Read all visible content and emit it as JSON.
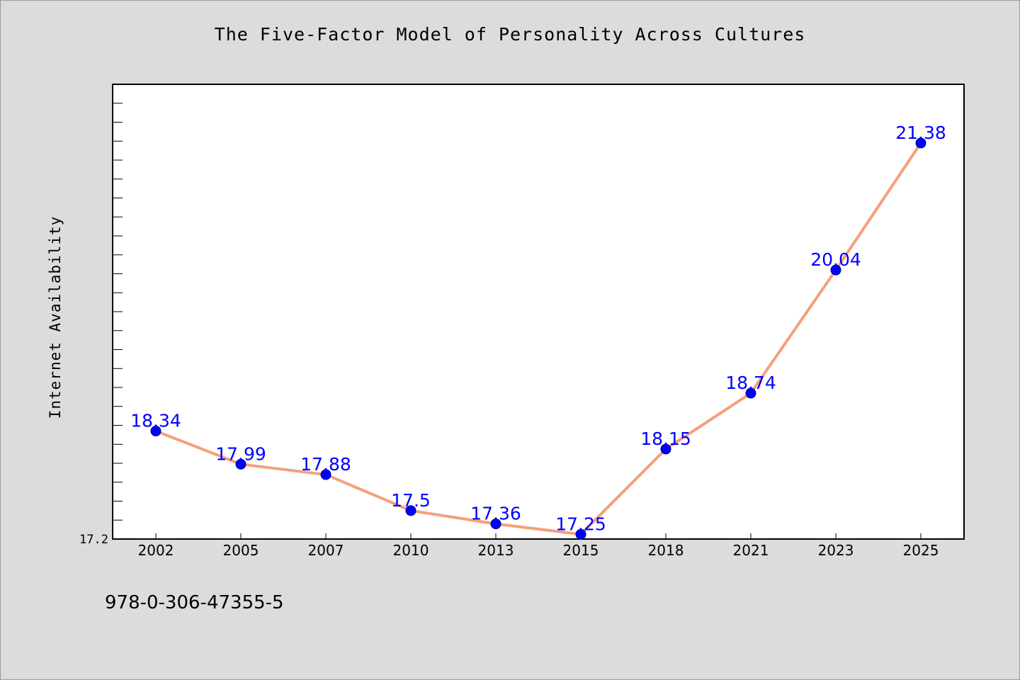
{
  "chart_data": {
    "type": "line",
    "title": "The Five-Factor Model of Personality Across Cultures",
    "xlabel": "",
    "ylabel": "Internet Availability",
    "categories": [
      "2002",
      "2005",
      "2007",
      "2010",
      "2013",
      "2015",
      "2018",
      "2021",
      "2023",
      "2025"
    ],
    "series": [
      {
        "values": [
          18.34,
          17.99,
          17.88,
          17.5,
          17.36,
          17.25,
          18.15,
          18.74,
          20.04,
          21.38
        ],
        "data_labels": [
          "18.34",
          "17.99",
          "17.88",
          "17.5",
          "17.36",
          "17.25",
          "18.15",
          "18.74",
          "20.04",
          "21.38"
        ]
      }
    ],
    "ylim": [
      17.2,
      22.0
    ],
    "y_tick_label": "17.2",
    "grid": false,
    "legend": "none",
    "colors": {
      "line": "#f4a07c",
      "marker": "#0000ff",
      "data_label": "#0000ff",
      "background": "#dcdcdc",
      "plot_area": "#ffffff"
    }
  },
  "footer": {
    "isbn": "978-0-306-47355-5"
  }
}
